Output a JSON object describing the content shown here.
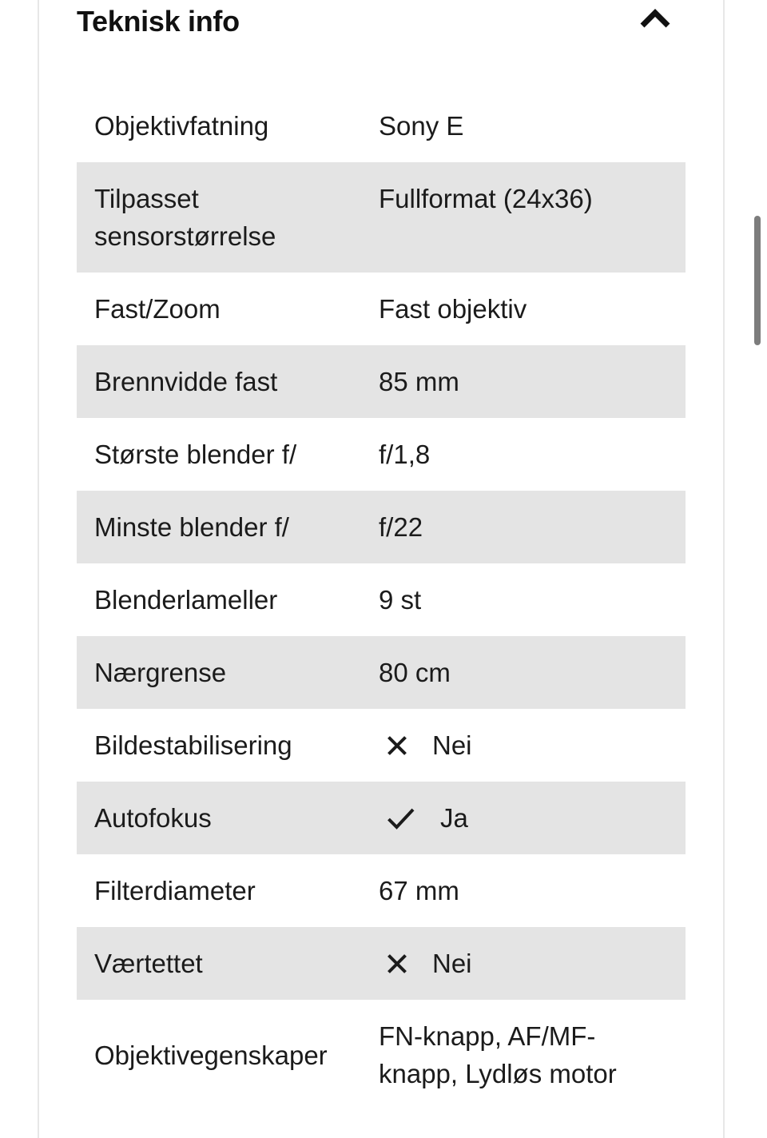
{
  "section": {
    "title": "Teknisk info",
    "collapse_icon": "chevron-up-icon",
    "state": "expanded"
  },
  "colors": {
    "row-alt-bg": "#e4e4e4",
    "text": "#1b1b1b",
    "title": "#111111",
    "border": "#e7e7e7",
    "scrollbar": "#7d7d7d"
  },
  "icons": {
    "no": "x-icon",
    "yes": "check-icon"
  },
  "specs": [
    {
      "label": "Objektivfatning",
      "value": "Sony E",
      "shaded": false
    },
    {
      "label": "Tilpasset sensorstørrelse",
      "value": "Fullformat (24x36)",
      "shaded": true,
      "valign": "top"
    },
    {
      "label": "Fast/Zoom",
      "value": "Fast objektiv",
      "shaded": false
    },
    {
      "label": "Brennvidde fast",
      "value": "85 mm",
      "shaded": true
    },
    {
      "label": "Største blender f/",
      "value": "f/1,8",
      "shaded": false
    },
    {
      "label": "Minste blender f/",
      "value": "f/22",
      "shaded": true
    },
    {
      "label": "Blenderlameller",
      "value": "9 st",
      "shaded": false
    },
    {
      "label": "Nærgrense",
      "value": "80 cm",
      "shaded": true
    },
    {
      "label": "Bildestabilisering",
      "value": "Nei",
      "icon": "x",
      "shaded": false
    },
    {
      "label": "Autofokus",
      "value": "Ja",
      "icon": "check",
      "shaded": true
    },
    {
      "label": "Filterdiameter",
      "value": "67 mm",
      "shaded": false
    },
    {
      "label": "Værtettet",
      "value": "Nei",
      "icon": "x",
      "shaded": true
    },
    {
      "label": "Objektivegenskaper",
      "value": "FN-knapp, AF/MF-knapp, Lydløs motor",
      "shaded": false
    }
  ]
}
